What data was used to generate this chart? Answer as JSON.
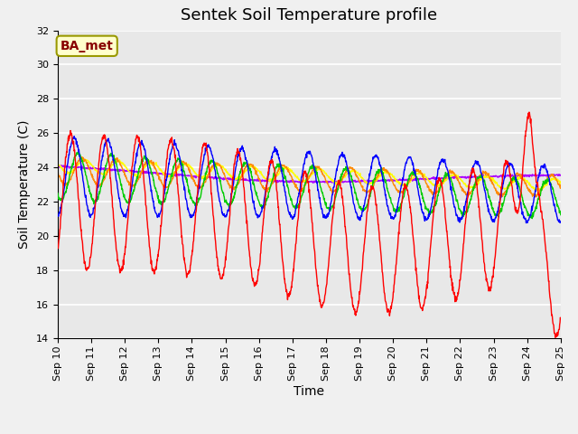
{
  "title": "Sentek Soil Temperature profile",
  "xlabel": "Time",
  "ylabel": "Soil Temperature (C)",
  "ylim": [
    14,
    32
  ],
  "yticks": [
    14,
    16,
    18,
    20,
    22,
    24,
    26,
    28,
    30,
    32
  ],
  "series_colors": {
    "-10cm": "#ff0000",
    "-20cm": "#0000ff",
    "-30cm": "#00cc00",
    "-40cm": "#ff8800",
    "-50cm": "#ffff00",
    "-60cm": "#aa00ff"
  },
  "legend_label": "BA_met",
  "plot_bg_color": "#e8e8e8",
  "fig_bg_color": "#f0f0f0",
  "grid_color": "#ffffff",
  "title_fontsize": 13,
  "axis_fontsize": 10,
  "tick_fontsize": 8,
  "legend_fontsize": 10,
  "annotation_color": "#880000",
  "annotation_bg": "#ffffcc",
  "annotation_edge": "#999900"
}
